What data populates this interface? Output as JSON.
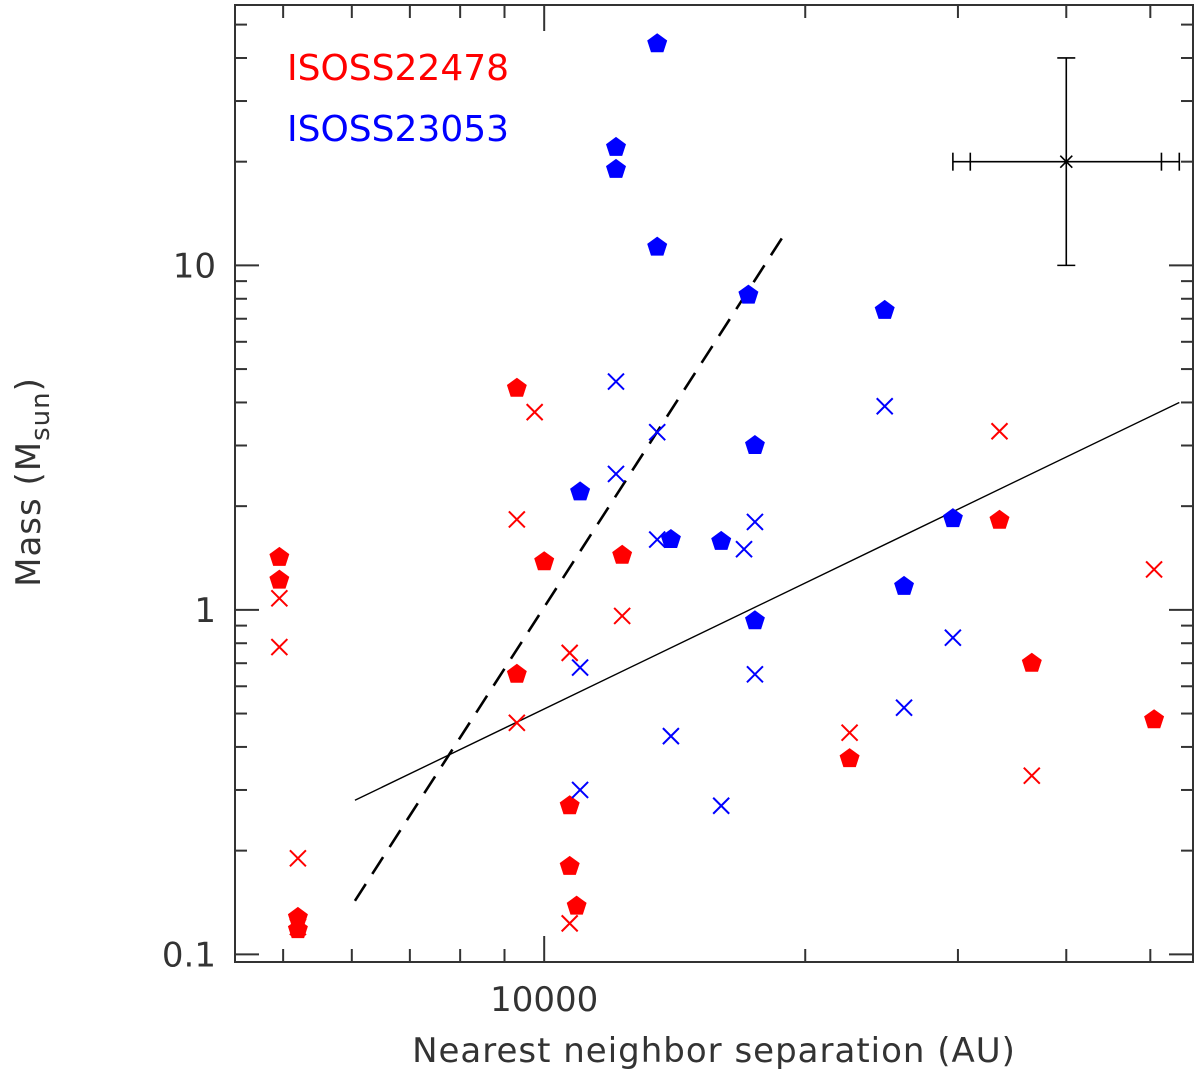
{
  "chart_data": {
    "type": "scatter",
    "title": "",
    "xlabel": "Nearest neighbor separation (AU)",
    "ylabel_main": "Mass (M",
    "ylabel_sub": "sun",
    "ylabel_close": ")",
    "xscale": "log",
    "yscale": "log",
    "xlim": [
      4400,
      56000
    ],
    "ylim": [
      0.095,
      57
    ],
    "x_tick_labels": [
      {
        "value": 10000,
        "label": "10000"
      }
    ],
    "y_tick_labels": [
      {
        "value": 0.1,
        "label": "0.1"
      },
      {
        "value": 1,
        "label": "1"
      },
      {
        "value": 10,
        "label": "10"
      }
    ],
    "x_major_ticks": [
      10000
    ],
    "x_minor_ticks": [
      5000,
      6000,
      7000,
      8000,
      9000,
      20000,
      30000,
      40000,
      50000
    ],
    "y_major_ticks": [
      0.1,
      1,
      10
    ],
    "y_minor_ticks": [
      0.2,
      0.3,
      0.4,
      0.5,
      0.6,
      0.7,
      0.8,
      0.9,
      2,
      3,
      4,
      5,
      6,
      7,
      8,
      9,
      20,
      30,
      40,
      50
    ],
    "legend": [
      {
        "label": "ISOSS22478",
        "color": "#ff0000"
      },
      {
        "label": "ISOSS23053",
        "color": "#0000ff"
      }
    ],
    "legend_position": "top-left",
    "colors": {
      "ISOSS22478": "#ff0000",
      "ISOSS23053": "#0000ff",
      "axes": "#333333",
      "lines": "#000000"
    },
    "series": [
      {
        "name": "ISOSS22478",
        "color": "#ff0000",
        "pentagons": [
          {
            "x": 4950,
            "y": 1.42
          },
          {
            "x": 4950,
            "y": 1.22
          },
          {
            "x": 5200,
            "y": 0.128
          },
          {
            "x": 5200,
            "y": 0.118
          },
          {
            "x": 9300,
            "y": 4.4
          },
          {
            "x": 9300,
            "y": 0.65
          },
          {
            "x": 10000,
            "y": 1.38
          },
          {
            "x": 10700,
            "y": 0.27
          },
          {
            "x": 10700,
            "y": 0.18
          },
          {
            "x": 10900,
            "y": 0.138
          },
          {
            "x": 12300,
            "y": 1.44
          },
          {
            "x": 22500,
            "y": 0.37
          },
          {
            "x": 33500,
            "y": 1.82
          },
          {
            "x": 36500,
            "y": 0.7
          },
          {
            "x": 50500,
            "y": 0.48
          }
        ],
        "crosses": [
          {
            "x": 4950,
            "y": 1.08
          },
          {
            "x": 4950,
            "y": 0.78
          },
          {
            "x": 5200,
            "y": 0.19
          },
          {
            "x": 5200,
            "y": 0.12
          },
          {
            "x": 9300,
            "y": 1.83
          },
          {
            "x": 9300,
            "y": 0.47
          },
          {
            "x": 9750,
            "y": 3.75
          },
          {
            "x": 10700,
            "y": 0.75
          },
          {
            "x": 10700,
            "y": 0.123
          },
          {
            "x": 12300,
            "y": 0.96
          },
          {
            "x": 22500,
            "y": 0.44
          },
          {
            "x": 33500,
            "y": 3.3
          },
          {
            "x": 36500,
            "y": 0.33
          },
          {
            "x": 50500,
            "y": 1.31
          }
        ]
      },
      {
        "name": "ISOSS23053",
        "color": "#0000ff",
        "pentagons": [
          {
            "x": 13500,
            "y": 44.0
          },
          {
            "x": 12100,
            "y": 22.0
          },
          {
            "x": 12100,
            "y": 19.0
          },
          {
            "x": 13500,
            "y": 11.3
          },
          {
            "x": 17200,
            "y": 8.2
          },
          {
            "x": 24700,
            "y": 7.4
          },
          {
            "x": 17500,
            "y": 3.0
          },
          {
            "x": 11000,
            "y": 2.2
          },
          {
            "x": 14000,
            "y": 1.6
          },
          {
            "x": 16000,
            "y": 1.58
          },
          {
            "x": 29600,
            "y": 1.84
          },
          {
            "x": 26000,
            "y": 1.17
          },
          {
            "x": 17500,
            "y": 0.93
          }
        ],
        "crosses": [
          {
            "x": 12100,
            "y": 4.6
          },
          {
            "x": 12100,
            "y": 2.48
          },
          {
            "x": 13500,
            "y": 3.28
          },
          {
            "x": 13500,
            "y": 1.6
          },
          {
            "x": 11000,
            "y": 0.68
          },
          {
            "x": 11000,
            "y": 0.3
          },
          {
            "x": 14000,
            "y": 0.43
          },
          {
            "x": 16000,
            "y": 0.27
          },
          {
            "x": 17000,
            "y": 1.5
          },
          {
            "x": 17500,
            "y": 1.8
          },
          {
            "x": 17500,
            "y": 0.65
          },
          {
            "x": 24700,
            "y": 3.9
          },
          {
            "x": 26000,
            "y": 0.52
          },
          {
            "x": 29600,
            "y": 0.83
          }
        ]
      }
    ],
    "fit_lines": [
      {
        "name": "solid-fit",
        "style": "solid",
        "points": [
          [
            6050,
            0.28
          ],
          [
            54000,
            4.0
          ]
        ]
      },
      {
        "name": "dashed-fit",
        "style": "dashed",
        "points": [
          [
            6050,
            0.143
          ],
          [
            19000,
            12.5
          ]
        ]
      }
    ],
    "error_bar": {
      "x": 40000,
      "y": 20.0,
      "x_inner": [
        31000,
        51500
      ],
      "x_outer": [
        29600,
        54000
      ],
      "y_range": [
        10.0,
        40.0
      ]
    }
  }
}
